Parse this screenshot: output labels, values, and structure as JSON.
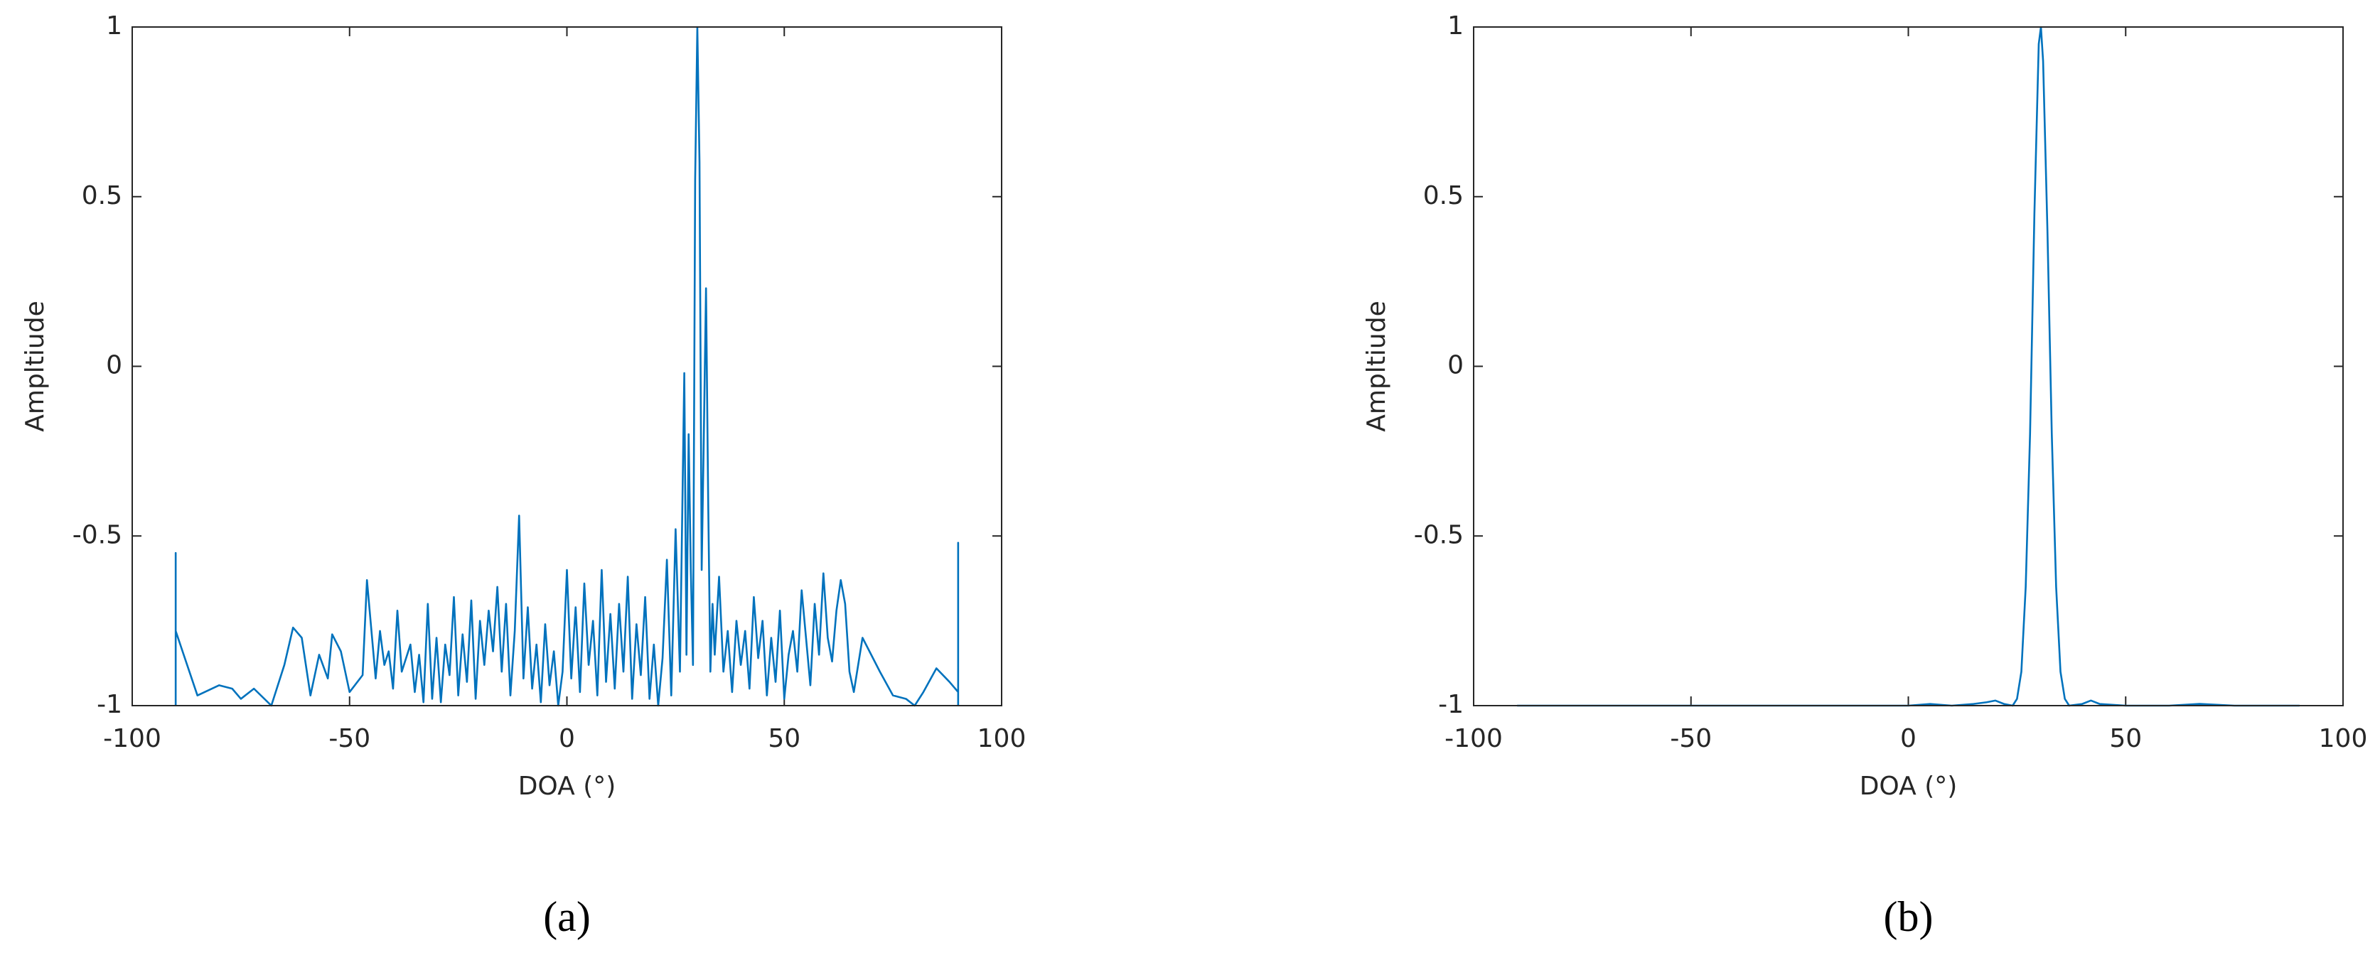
{
  "chart_data": [
    {
      "type": "line",
      "caption": "(a)",
      "xlabel": "DOA (°)",
      "ylabel": "Ampltiude",
      "color": "#0072bd",
      "xlim": [
        -100,
        100
      ],
      "ylim": [
        -1,
        1
      ],
      "xticks": [
        -100,
        -50,
        0,
        50,
        100
      ],
      "yticks": [
        -1,
        -0.5,
        0,
        0.5,
        1
      ],
      "x": [
        -90,
        -90,
        -90,
        -85,
        -80,
        -77,
        -75,
        -72,
        -68,
        -65,
        -63,
        -61,
        -59,
        -57,
        -55,
        -54,
        -52,
        -50,
        -47,
        -46,
        -44,
        -43,
        -42,
        -41,
        -40,
        -39,
        -38,
        -36,
        -35,
        -34,
        -33,
        -32,
        -31,
        -30,
        -29,
        -28,
        -27,
        -26,
        -25,
        -24,
        -23,
        -22,
        -21,
        -20,
        -19,
        -18,
        -17,
        -16,
        -15,
        -14,
        -13,
        -12,
        -11,
        -10,
        -9,
        -8,
        -7,
        -6,
        -5,
        -4,
        -3,
        -2,
        -1,
        0,
        1,
        2,
        3,
        4,
        5,
        6,
        7,
        8,
        9,
        10,
        11,
        12,
        13,
        14,
        15,
        16,
        17,
        18,
        19,
        20,
        21,
        22,
        23,
        24,
        25,
        26,
        27,
        27.5,
        28,
        28.5,
        29,
        29.5,
        30,
        30.5,
        31,
        31.5,
        32,
        32.5,
        33,
        33.5,
        34,
        35,
        36,
        37,
        38,
        39,
        40,
        41,
        42,
        43,
        44,
        45,
        46,
        47,
        48,
        49,
        50,
        51,
        52,
        53,
        54,
        55,
        56,
        57,
        58,
        59,
        60,
        61,
        62,
        63,
        64,
        65,
        66,
        68,
        70,
        72,
        75,
        78,
        80,
        82,
        85,
        88,
        90,
        90,
        90
      ],
      "values": [
        -1,
        -0.55,
        -0.78,
        -0.97,
        -0.94,
        -0.95,
        -0.98,
        -0.95,
        -1,
        -0.88,
        -0.77,
        -0.8,
        -0.97,
        -0.85,
        -0.92,
        -0.79,
        -0.84,
        -0.96,
        -0.91,
        -0.63,
        -0.92,
        -0.78,
        -0.88,
        -0.84,
        -0.95,
        -0.72,
        -0.9,
        -0.82,
        -0.96,
        -0.85,
        -0.99,
        -0.7,
        -0.98,
        -0.8,
        -0.99,
        -0.82,
        -0.91,
        -0.68,
        -0.97,
        -0.79,
        -0.93,
        -0.69,
        -0.98,
        -0.75,
        -0.88,
        -0.72,
        -0.84,
        -0.65,
        -0.9,
        -0.7,
        -0.97,
        -0.78,
        -0.44,
        -0.92,
        -0.71,
        -0.95,
        -0.82,
        -0.99,
        -0.76,
        -0.94,
        -0.84,
        -1,
        -0.9,
        -0.6,
        -0.92,
        -0.71,
        -0.96,
        -0.64,
        -0.88,
        -0.75,
        -0.97,
        -0.6,
        -0.93,
        -0.73,
        -0.95,
        -0.7,
        -0.9,
        -0.62,
        -0.98,
        -0.76,
        -0.91,
        -0.68,
        -0.98,
        -0.82,
        -1,
        -0.86,
        -0.57,
        -0.97,
        -0.48,
        -0.9,
        -0.02,
        -0.85,
        -0.2,
        -0.6,
        -0.88,
        0.55,
        1,
        0.6,
        -0.6,
        -0.2,
        0.23,
        -0.4,
        -0.9,
        -0.7,
        -0.85,
        -0.62,
        -0.9,
        -0.78,
        -0.96,
        -0.75,
        -0.88,
        -0.78,
        -0.95,
        -0.68,
        -0.86,
        -0.75,
        -0.97,
        -0.8,
        -0.93,
        -0.72,
        -0.98,
        -0.85,
        -0.78,
        -0.9,
        -0.66,
        -0.8,
        -0.94,
        -0.7,
        -0.85,
        -0.61,
        -0.8,
        -0.87,
        -0.72,
        -0.63,
        -0.7,
        -0.9,
        -0.96,
        -0.8,
        -0.85,
        -0.9,
        -0.97,
        -0.98,
        -1,
        -0.96,
        -0.89,
        -0.93,
        -0.96,
        -0.52,
        -1
      ]
    },
    {
      "type": "line",
      "caption": "(b)",
      "xlabel": "DOA (°)",
      "ylabel": "Ampltiude",
      "color": "#0072bd",
      "xlim": [
        -100,
        100
      ],
      "ylim": [
        -1,
        1
      ],
      "xticks": [
        -100,
        -50,
        0,
        50,
        100
      ],
      "yticks": [
        -1,
        -0.5,
        0,
        0.5,
        1
      ],
      "x": [
        -90,
        -60,
        -30,
        0,
        5,
        10,
        15,
        18,
        20,
        22,
        24,
        25,
        26,
        27,
        28,
        29,
        30,
        30.5,
        31,
        32,
        33,
        34,
        35,
        36,
        37,
        40,
        42,
        44,
        50,
        60,
        67,
        75,
        90
      ],
      "values": [
        -1,
        -1,
        -1,
        -1,
        -0.995,
        -1,
        -0.995,
        -0.99,
        -0.985,
        -0.995,
        -1,
        -0.98,
        -0.9,
        -0.65,
        -0.2,
        0.45,
        0.95,
        1,
        0.9,
        0.4,
        -0.2,
        -0.65,
        -0.9,
        -0.98,
        -1,
        -0.995,
        -0.985,
        -0.995,
        -1,
        -1,
        -0.995,
        -1,
        -1
      ]
    }
  ]
}
